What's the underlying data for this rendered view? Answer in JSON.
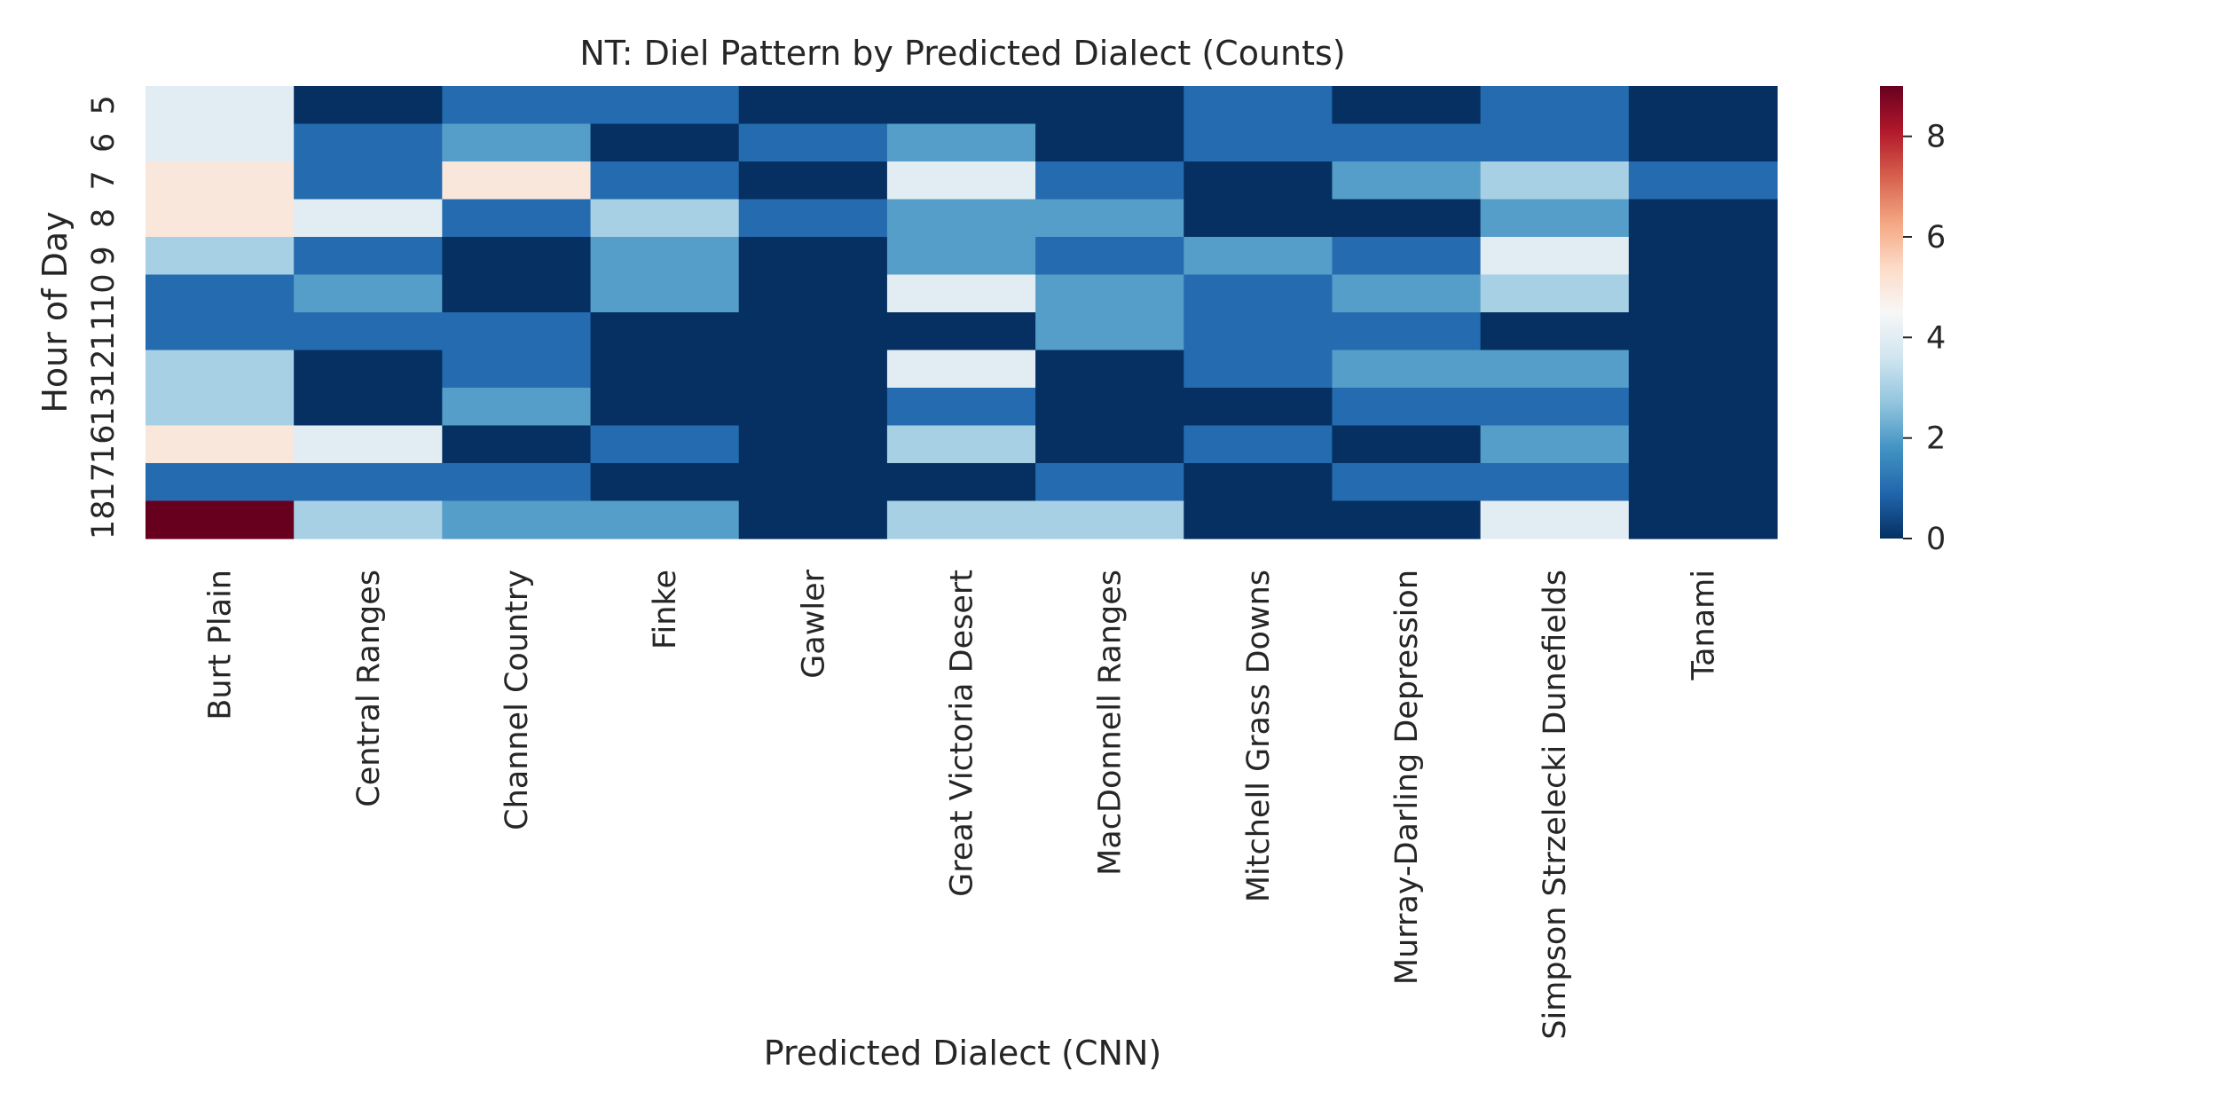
{
  "chart_data": {
    "type": "heatmap",
    "title": "NT: Diel Pattern by Predicted Dialect (Counts)",
    "xlabel": "Predicted Dialect (CNN)",
    "ylabel": "Hour of Day",
    "x_categories": [
      "Burt Plain",
      "Central Ranges",
      "Channel Country",
      "Finke",
      "Gawler",
      "Great Victoria Desert",
      "MacDonnell Ranges",
      "Mitchell Grass Downs",
      "Murray-Darling Depression",
      "Simpson Strzelecki Dunefields",
      "Tanami"
    ],
    "y_categories": [
      "5",
      "6",
      "7",
      "8",
      "9",
      "10",
      "11",
      "12",
      "13",
      "16",
      "17",
      "18"
    ],
    "values": [
      [
        4,
        0,
        1,
        1,
        0,
        0,
        0,
        1,
        0,
        1,
        0
      ],
      [
        4,
        1,
        2,
        0,
        1,
        2,
        0,
        1,
        1,
        1,
        0
      ],
      [
        5,
        1,
        5,
        1,
        0,
        4,
        1,
        0,
        2,
        3,
        1
      ],
      [
        5,
        4,
        1,
        3,
        1,
        2,
        2,
        0,
        0,
        2,
        0
      ],
      [
        3,
        1,
        0,
        2,
        0,
        2,
        1,
        2,
        1,
        4,
        0
      ],
      [
        1,
        2,
        0,
        2,
        0,
        4,
        2,
        1,
        2,
        3,
        0
      ],
      [
        1,
        1,
        1,
        0,
        0,
        0,
        2,
        1,
        1,
        0,
        0
      ],
      [
        3,
        0,
        1,
        0,
        0,
        4,
        0,
        1,
        2,
        2,
        0
      ],
      [
        3,
        0,
        2,
        0,
        0,
        1,
        0,
        0,
        1,
        1,
        0
      ],
      [
        5,
        4,
        0,
        1,
        0,
        3,
        0,
        1,
        0,
        2,
        0
      ],
      [
        1,
        1,
        1,
        0,
        0,
        0,
        1,
        0,
        1,
        1,
        0
      ],
      [
        9,
        3,
        2,
        2,
        0,
        3,
        3,
        0,
        0,
        4,
        0
      ]
    ],
    "colormap": "RdBu_r",
    "vmin": 0,
    "vmax": 9,
    "colorbar_ticks": [
      0,
      2,
      4,
      6,
      8
    ],
    "grid": false
  }
}
